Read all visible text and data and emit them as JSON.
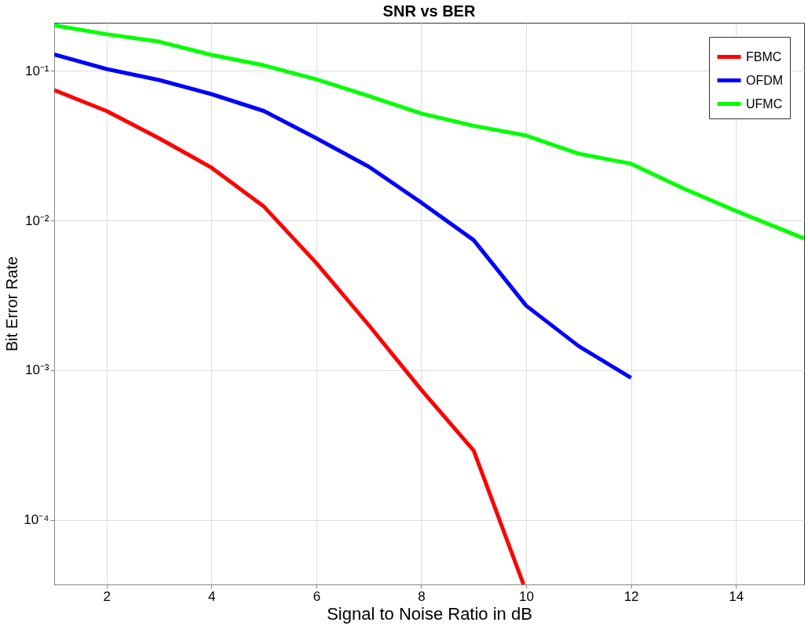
{
  "chart_data": {
    "type": "line",
    "title": "SNR vs BER",
    "xlabel": "Signal to Noise Ratio in dB",
    "ylabel": "Bit Error Rate",
    "series": [
      {
        "name": "FBMC",
        "color": "#ff0000",
        "x": [
          1,
          2,
          3,
          4,
          5,
          6,
          7,
          8,
          9,
          9.95
        ],
        "values": [
          0.0745,
          0.054,
          0.0355,
          0.0226,
          0.0124,
          0.0052,
          0.002,
          0.00074,
          0.00029,
          3.7e-05
        ]
      },
      {
        "name": "OFDM",
        "color": "#0000ff",
        "x": [
          1,
          2,
          3,
          4,
          5,
          6,
          7,
          8,
          9,
          10,
          11,
          12
        ],
        "values": [
          0.129,
          0.103,
          0.087,
          0.07,
          0.054,
          0.0355,
          0.0229,
          0.0132,
          0.0074,
          0.0027,
          0.00145,
          0.00089
        ]
      },
      {
        "name": "UFMC",
        "color": "#00ff00",
        "x": [
          1,
          2,
          3,
          4,
          5,
          6,
          7,
          8,
          9,
          10,
          11,
          12,
          13,
          14,
          15.3
        ],
        "values": [
          0.202,
          0.176,
          0.157,
          0.128,
          0.109,
          0.088,
          0.068,
          0.052,
          0.043,
          0.037,
          0.028,
          0.024,
          0.0164,
          0.0116,
          0.0076
        ]
      }
    ],
    "xlim": [
      1,
      15.3
    ],
    "xticks": [
      2,
      4,
      6,
      8,
      10,
      12,
      14
    ],
    "ylim": [
      3.7e-05,
      0.21
    ],
    "yticks": [
      {
        "value": 0.0001,
        "label": "10⁻⁴"
      },
      {
        "value": 0.001,
        "label": "10⁻³"
      },
      {
        "value": 0.01,
        "label": "10⁻²"
      },
      {
        "value": 0.1,
        "label": "10⁻¹"
      }
    ],
    "log": true,
    "grid": true,
    "legend": "top right",
    "line_style": "solid",
    "marker": "none"
  }
}
